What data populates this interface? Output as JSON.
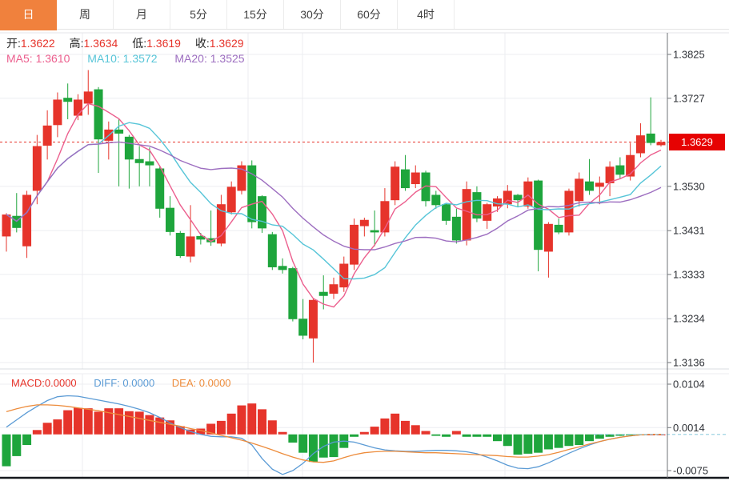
{
  "tabs": [
    {
      "name": "tab-day",
      "label": "日",
      "active": true
    },
    {
      "name": "tab-week",
      "label": "周",
      "active": false
    },
    {
      "name": "tab-month",
      "label": "月",
      "active": false
    },
    {
      "name": "tab-5min",
      "label": "5分",
      "active": false
    },
    {
      "name": "tab-15min",
      "label": "15分",
      "active": false
    },
    {
      "name": "tab-30min",
      "label": "30分",
      "active": false
    },
    {
      "name": "tab-60min",
      "label": "60分",
      "active": false
    },
    {
      "name": "tab-4hour",
      "label": "4时",
      "active": false
    }
  ],
  "quote": {
    "open_label": "开:",
    "open": "1.3622",
    "high_label": "高:",
    "high": "1.3634",
    "low_label": "低:",
    "low": "1.3619",
    "close_label": "收:",
    "close": "1.3629"
  },
  "ma": {
    "ma5_label": "MA5:",
    "ma5": "1.3610",
    "ma10_label": "MA10:",
    "ma10": "1.3572",
    "ma20_label": "MA20:",
    "ma20": "1.3525"
  },
  "macd_header": {
    "macd_label": "MACD:",
    "macd": "0.0000",
    "diff_label": "DIFF:",
    "diff": "0.0000",
    "dea_label": "DEA:",
    "dea": "0.0000"
  },
  "main_axis": {
    "current_price": "1.3629"
  },
  "colors": {
    "up": "#e6342b",
    "down": "#1ea53c",
    "ma5": "#ec5f8e",
    "ma10": "#57c5d8",
    "ma20": "#9d6ec0",
    "diff": "#5b9bd5",
    "dea": "#ed8c3c",
    "tab_active": "#f0813d",
    "price_box": "#e60202",
    "grid": "#ecedf1",
    "axis_text": "#2f3237",
    "dashed_zero": "#9fd4e2"
  },
  "chart_data": {
    "type": "candlestick",
    "title": "",
    "ylim": [
      1.3136,
      1.3825
    ],
    "y_ticks": [
      "1.3825",
      "1.3727",
      "1.3629",
      "1.3530",
      "1.3431",
      "1.3333",
      "1.3234",
      "1.3136"
    ],
    "current_price": 1.3629,
    "overlays": [
      "MA5",
      "MA10",
      "MA20"
    ],
    "candles_format": [
      "open",
      "high",
      "low",
      "close"
    ],
    "candles": [
      [
        1.3418,
        1.347,
        1.3384,
        1.3467
      ],
      [
        1.3464,
        1.3515,
        1.3427,
        1.3437
      ],
      [
        1.3396,
        1.352,
        1.337,
        1.3511
      ],
      [
        1.352,
        1.3645,
        1.349,
        1.362
      ],
      [
        1.3621,
        1.37,
        1.359,
        1.3666
      ],
      [
        1.3667,
        1.374,
        1.364,
        1.3724
      ],
      [
        1.3728,
        1.376,
        1.368,
        1.3719
      ],
      [
        1.3688,
        1.3736,
        1.3678,
        1.3724
      ],
      [
        1.3715,
        1.379,
        1.369,
        1.3742
      ],
      [
        1.3747,
        1.3752,
        1.356,
        1.3635
      ],
      [
        1.3632,
        1.3675,
        1.359,
        1.3657
      ],
      [
        1.3657,
        1.368,
        1.353,
        1.3648
      ],
      [
        1.3641,
        1.3645,
        1.3525,
        1.359
      ],
      [
        1.3591,
        1.362,
        1.353,
        1.3582
      ],
      [
        1.3586,
        1.3617,
        1.353,
        1.3577
      ],
      [
        1.357,
        1.3575,
        1.346,
        1.348
      ],
      [
        1.3482,
        1.3508,
        1.342,
        1.3428
      ],
      [
        1.3426,
        1.343,
        1.337,
        1.3374
      ],
      [
        1.3373,
        1.3488,
        1.336,
        1.3418
      ],
      [
        1.3419,
        1.3426,
        1.34,
        1.3411
      ],
      [
        1.3414,
        1.3476,
        1.3397,
        1.3405
      ],
      [
        1.3402,
        1.3511,
        1.3396,
        1.349
      ],
      [
        1.3472,
        1.3541,
        1.3467,
        1.3529
      ],
      [
        1.352,
        1.3586,
        1.3512,
        1.3577
      ],
      [
        1.3577,
        1.3588,
        1.3436,
        1.345
      ],
      [
        1.3508,
        1.351,
        1.3426,
        1.3436
      ],
      [
        1.3423,
        1.3428,
        1.3343,
        1.3349
      ],
      [
        1.3352,
        1.3369,
        1.3335,
        1.3343
      ],
      [
        1.3347,
        1.335,
        1.3228,
        1.3233
      ],
      [
        1.3234,
        1.3278,
        1.3188,
        1.3196
      ],
      [
        1.319,
        1.328,
        1.3136,
        1.3276
      ],
      [
        1.3294,
        1.3331,
        1.3255,
        1.3285
      ],
      [
        1.329,
        1.3326,
        1.3278,
        1.3311
      ],
      [
        1.3304,
        1.3373,
        1.3294,
        1.3357
      ],
      [
        1.3355,
        1.3458,
        1.3343,
        1.3444
      ],
      [
        1.3441,
        1.346,
        1.3418,
        1.3455
      ],
      [
        1.3432,
        1.3476,
        1.3396,
        1.3427
      ],
      [
        1.3427,
        1.3526,
        1.3418,
        1.3497
      ],
      [
        1.3499,
        1.3586,
        1.3488,
        1.3574
      ],
      [
        1.3568,
        1.36,
        1.352,
        1.3526
      ],
      [
        1.3535,
        1.3577,
        1.3526,
        1.3561
      ],
      [
        1.3561,
        1.3565,
        1.3485,
        1.3497
      ],
      [
        1.3511,
        1.352,
        1.348,
        1.3488
      ],
      [
        1.349,
        1.3493,
        1.3444,
        1.3453
      ],
      [
        1.3462,
        1.348,
        1.3402,
        1.3409
      ],
      [
        1.3409,
        1.3541,
        1.3398,
        1.3524
      ],
      [
        1.3517,
        1.353,
        1.345,
        1.3458
      ],
      [
        1.3453,
        1.3493,
        1.3435,
        1.349
      ],
      [
        1.3485,
        1.3508,
        1.3473,
        1.3503
      ],
      [
        1.349,
        1.3533,
        1.3481,
        1.352
      ],
      [
        1.3511,
        1.3513,
        1.3485,
        1.3499
      ],
      [
        1.3485,
        1.355,
        1.348,
        1.3541
      ],
      [
        1.3543,
        1.3545,
        1.334,
        1.3388
      ],
      [
        1.3384,
        1.345,
        1.3326,
        1.3446
      ],
      [
        1.3444,
        1.3458,
        1.3423,
        1.3427
      ],
      [
        1.3427,
        1.3525,
        1.342,
        1.352
      ],
      [
        1.3497,
        1.3561,
        1.3485,
        1.3547
      ],
      [
        1.3541,
        1.3591,
        1.3511,
        1.352
      ],
      [
        1.3529,
        1.3552,
        1.349,
        1.3538
      ],
      [
        1.3537,
        1.3586,
        1.3508,
        1.3574
      ],
      [
        1.3577,
        1.3595,
        1.3547,
        1.3556
      ],
      [
        1.3552,
        1.3627,
        1.3543,
        1.36
      ],
      [
        1.3604,
        1.3671,
        1.3595,
        1.3644
      ],
      [
        1.3648,
        1.3729,
        1.3622,
        1.3627
      ],
      [
        1.3622,
        1.3634,
        1.3619,
        1.3629
      ]
    ],
    "macd_panel": {
      "type": "bar",
      "ylim": [
        -0.0075,
        0.0104
      ],
      "y_ticks": [
        "0.0104",
        "0.0014",
        "-0.0075"
      ],
      "histogram": [
        -0.0066,
        -0.0045,
        -0.0022,
        0.0009,
        0.0024,
        0.0031,
        0.005,
        0.0055,
        0.0054,
        0.0047,
        0.0054,
        0.0054,
        0.0048,
        0.0047,
        0.004,
        0.0035,
        0.0029,
        0.0017,
        0.001,
        0.0012,
        0.0022,
        0.0028,
        0.0043,
        0.006,
        0.0064,
        0.0052,
        0.0029,
        0.0005,
        -0.0017,
        -0.0038,
        -0.0057,
        -0.0048,
        -0.0047,
        -0.0028,
        -0.0005,
        0.0005,
        0.0016,
        0.0033,
        0.0043,
        0.0028,
        0.0019,
        0.0007,
        -0.0003,
        -0.0005,
        0.0007,
        -0.0005,
        -0.0005,
        -0.0005,
        -0.0014,
        -0.0024,
        -0.0042,
        -0.004,
        -0.0038,
        -0.0031,
        -0.0028,
        -0.0024,
        -0.0022,
        -0.0014,
        -0.0009,
        -0.0005,
        -0.0003,
        -0.0002,
        -0.0001,
        0.0,
        0.0
      ],
      "diff": [
        0.0015,
        0.003,
        0.0045,
        0.0058,
        0.007,
        0.0078,
        0.008,
        0.0079,
        0.0075,
        0.0071,
        0.0067,
        0.0063,
        0.0058,
        0.0052,
        0.0045,
        0.0035,
        0.0024,
        0.0014,
        0.0006,
        0.0,
        -0.0004,
        -0.0005,
        -0.0005,
        -0.0008,
        -0.0022,
        -0.005,
        -0.0072,
        -0.0083,
        -0.0075,
        -0.006,
        -0.004,
        -0.0025,
        -0.0016,
        -0.0014,
        -0.0016,
        -0.0022,
        -0.0028,
        -0.0032,
        -0.0034,
        -0.0035,
        -0.0035,
        -0.0034,
        -0.0033,
        -0.0033,
        -0.0034,
        -0.0036,
        -0.004,
        -0.0047,
        -0.0055,
        -0.0064,
        -0.007,
        -0.0071,
        -0.0067,
        -0.0059,
        -0.0049,
        -0.0039,
        -0.003,
        -0.0022,
        -0.0015,
        -0.001,
        -0.0006,
        -0.0003,
        -0.0001,
        0.0,
        0.0
      ],
      "dea": [
        0.0047,
        0.0053,
        0.0058,
        0.0061,
        0.0061,
        0.006,
        0.0058,
        0.0055,
        0.0052,
        0.0049,
        0.0045,
        0.0041,
        0.0037,
        0.0033,
        0.0029,
        0.0025,
        0.0021,
        0.0017,
        0.0012,
        0.0008,
        0.0003,
        -0.0002,
        -0.0007,
        -0.0012,
        -0.0018,
        -0.0025,
        -0.0032,
        -0.004,
        -0.0047,
        -0.0053,
        -0.0057,
        -0.0058,
        -0.0055,
        -0.0048,
        -0.0042,
        -0.0038,
        -0.0036,
        -0.0035,
        -0.0035,
        -0.0036,
        -0.0037,
        -0.0038,
        -0.0038,
        -0.0039,
        -0.004,
        -0.0041,
        -0.0042,
        -0.0043,
        -0.0044,
        -0.0046,
        -0.0047,
        -0.0047,
        -0.0045,
        -0.0042,
        -0.0037,
        -0.0031,
        -0.0026,
        -0.002,
        -0.0015,
        -0.001,
        -0.0006,
        -0.0003,
        -0.0001,
        0.0,
        0.0
      ]
    }
  }
}
